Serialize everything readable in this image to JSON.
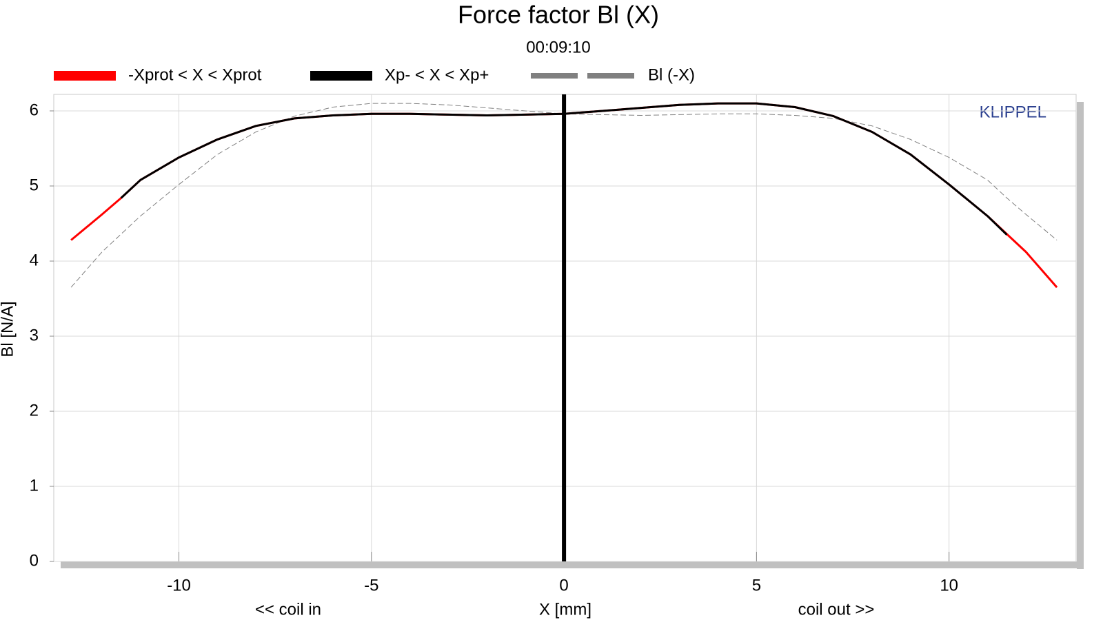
{
  "chart_data": {
    "type": "line",
    "title": "Force factor Bl (X)",
    "subtitle": "00:09:10",
    "x_label": "X [mm]",
    "y_label": "Bl [N/A]",
    "x_note_left": "<< coil in",
    "x_note_right": "coil out >>",
    "watermark": "KLIPPEL",
    "xlim": [
      -13.25,
      13.3
    ],
    "ylim": [
      0,
      6.22
    ],
    "xticks": [
      -10,
      -5,
      0,
      5,
      10
    ],
    "yticks": [
      0,
      1,
      2,
      3,
      4,
      5,
      6
    ],
    "grid": true,
    "cursor_x": 0,
    "series": [
      {
        "name": "-Xprot < X < Xprot",
        "color": "#ff0000",
        "width": 3,
        "dashed": false,
        "x": [
          -12.8,
          -12,
          -11.5,
          -11,
          -10,
          -9,
          -8,
          -7,
          -6,
          -5,
          -4,
          -3,
          -2,
          -1,
          0,
          1,
          2,
          3,
          4,
          5,
          6,
          7,
          8,
          9,
          10,
          11,
          12,
          12.8
        ],
        "values": [
          4.28,
          4.62,
          4.84,
          5.08,
          5.38,
          5.62,
          5.8,
          5.9,
          5.94,
          5.96,
          5.96,
          5.95,
          5.94,
          5.95,
          5.96,
          6.0,
          6.04,
          6.08,
          6.1,
          6.1,
          6.05,
          5.93,
          5.72,
          5.42,
          5.02,
          4.6,
          4.12,
          3.65
        ]
      },
      {
        "name": "Xp- < X < Xp+",
        "color": "#000000",
        "width": 3,
        "dashed": false,
        "x": [
          -11.5,
          -11,
          -10,
          -9,
          -8,
          -7,
          -6,
          -5,
          -4,
          -3,
          -2,
          -1,
          0,
          1,
          2,
          3,
          4,
          5,
          6,
          7,
          8,
          9,
          10,
          11,
          11.5
        ],
        "values": [
          4.84,
          5.08,
          5.38,
          5.62,
          5.8,
          5.9,
          5.94,
          5.96,
          5.96,
          5.95,
          5.94,
          5.95,
          5.96,
          6.0,
          6.04,
          6.08,
          6.1,
          6.1,
          6.05,
          5.93,
          5.72,
          5.42,
          5.02,
          4.6,
          4.35
        ]
      },
      {
        "name": "Bl (-X)",
        "color": "#808080",
        "width": 1,
        "dashed": true,
        "x": [
          -12.8,
          -12,
          -11,
          -10,
          -9,
          -8,
          -7,
          -6,
          -5,
          -4,
          -3,
          -2,
          -1,
          0,
          1,
          2,
          3,
          4,
          5,
          6,
          7,
          8,
          9,
          10,
          11,
          11.5,
          12,
          12.8
        ],
        "values": [
          3.65,
          4.12,
          4.6,
          5.02,
          5.42,
          5.72,
          5.93,
          6.05,
          6.1,
          6.1,
          6.08,
          6.04,
          6.0,
          5.96,
          5.95,
          5.94,
          5.95,
          5.96,
          5.96,
          5.94,
          5.9,
          5.8,
          5.62,
          5.38,
          5.08,
          4.84,
          4.62,
          4.28
        ]
      }
    ]
  }
}
